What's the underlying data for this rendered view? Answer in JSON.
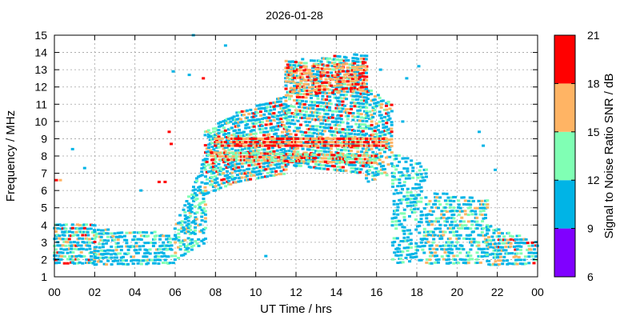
{
  "chart_data": {
    "type": "heatmap",
    "title": "2026-01-28",
    "xlabel": "UT Time / hrs",
    "ylabel": "Frequency / MHz",
    "colorbar_label": "Signal to Noise Ratio SNR / dB",
    "xlim": [
      0,
      24
    ],
    "ylim": [
      1,
      15
    ],
    "grid": true,
    "x_ticks": [
      "00",
      "02",
      "04",
      "06",
      "08",
      "10",
      "12",
      "14",
      "16",
      "18",
      "20",
      "22",
      "00"
    ],
    "y_ticks": [
      "1",
      "2",
      "3",
      "4",
      "5",
      "6",
      "7",
      "8",
      "9",
      "10",
      "11",
      "12",
      "13",
      "14",
      "15"
    ],
    "colorbar": {
      "ticks": [
        "6",
        "9",
        "12",
        "15",
        "18",
        "21"
      ],
      "bins": [
        {
          "min": 6,
          "max": 9,
          "color": "#8000ff"
        },
        {
          "min": 9,
          "max": 12,
          "color": "#00b4e6"
        },
        {
          "min": 12,
          "max": 15,
          "color": "#80ffb4"
        },
        {
          "min": 15,
          "max": 18,
          "color": "#ffb464"
        },
        {
          "min": 18,
          "max": 21,
          "color": "#ff0000"
        }
      ]
    },
    "regions": [
      {
        "x": [
          0,
          2
        ],
        "f_low": [
          1.8,
          1.8
        ],
        "f_high": [
          4.0,
          4.2
        ],
        "density": 0.6,
        "snr": [
          9,
          20
        ]
      },
      {
        "x": [
          2,
          6
        ],
        "f_low": [
          1.7,
          1.8
        ],
        "f_high": [
          3.8,
          3.5
        ],
        "density": 0.5,
        "snr": [
          9,
          17
        ]
      },
      {
        "x": [
          6,
          7.5
        ],
        "f_low": [
          2.0,
          3.0
        ],
        "f_high": [
          4.0,
          8.0
        ],
        "density": 0.45,
        "snr": [
          9,
          16
        ]
      },
      {
        "x": [
          7.5,
          9
        ],
        "f_low": [
          5.8,
          6.5
        ],
        "f_high": [
          9.5,
          10.5
        ],
        "density": 0.6,
        "snr": [
          9,
          21
        ]
      },
      {
        "x": [
          9,
          11.5
        ],
        "f_low": [
          6.5,
          7.0
        ],
        "f_high": [
          10.5,
          11.5
        ],
        "density": 0.65,
        "snr": [
          9,
          21
        ]
      },
      {
        "x": [
          11.5,
          15.5
        ],
        "f_low": [
          7.5,
          7.0
        ],
        "f_high": [
          13.5,
          14.0
        ],
        "density": 0.6,
        "snr": [
          9,
          21
        ]
      },
      {
        "x": [
          11.5,
          15.5
        ],
        "f_low": [
          11.5,
          11.8
        ],
        "f_high": [
          13.2,
          13.5
        ],
        "density": 0.5,
        "snr": [
          15,
          21
        ]
      },
      {
        "x": [
          15.5,
          16.8
        ],
        "f_low": [
          6.5,
          7.0
        ],
        "f_high": [
          12.0,
          11.0
        ],
        "density": 0.5,
        "snr": [
          9,
          20
        ]
      },
      {
        "x": [
          16.8,
          18.5
        ],
        "f_low": [
          1.8,
          2.0
        ],
        "f_high": [
          8.2,
          7.5
        ],
        "density": 0.35,
        "snr": [
          9,
          15
        ]
      },
      {
        "x": [
          18.5,
          21.5
        ],
        "f_low": [
          1.8,
          1.8
        ],
        "f_high": [
          6.0,
          5.5
        ],
        "density": 0.45,
        "snr": [
          9,
          17
        ]
      },
      {
        "x": [
          21.5,
          24
        ],
        "f_low": [
          1.7,
          1.8
        ],
        "f_high": [
          4.0,
          3.0
        ],
        "density": 0.55,
        "snr": [
          9,
          20
        ]
      }
    ],
    "traces": [
      {
        "x": [
          8,
          16.5
        ],
        "f": [
          8.8,
          8.8
        ],
        "snr": [
          15,
          21
        ]
      },
      {
        "x": [
          7.8,
          16
        ],
        "f": [
          8.0,
          7.8
        ],
        "snr": [
          12,
          20
        ]
      }
    ],
    "isolated_points": [
      {
        "x": 0.1,
        "f": 6.6,
        "snr": 18
      },
      {
        "x": 0.3,
        "f": 6.6,
        "snr": 17
      },
      {
        "x": 0.9,
        "f": 8.4,
        "snr": 10
      },
      {
        "x": 1.5,
        "f": 7.3,
        "snr": 10
      },
      {
        "x": 4.3,
        "f": 6.0,
        "snr": 10
      },
      {
        "x": 5.2,
        "f": 6.5,
        "snr": 19
      },
      {
        "x": 5.5,
        "f": 6.5,
        "snr": 20
      },
      {
        "x": 5.7,
        "f": 9.4,
        "snr": 20
      },
      {
        "x": 5.8,
        "f": 8.7,
        "snr": 19
      },
      {
        "x": 5.9,
        "f": 12.9,
        "snr": 10
      },
      {
        "x": 6.7,
        "f": 12.7,
        "snr": 10
      },
      {
        "x": 6.9,
        "f": 15.0,
        "snr": 10
      },
      {
        "x": 7.4,
        "f": 12.5,
        "snr": 19
      },
      {
        "x": 8.5,
        "f": 14.4,
        "snr": 10
      },
      {
        "x": 10.5,
        "f": 2.2,
        "snr": 10
      },
      {
        "x": 16.2,
        "f": 13.0,
        "snr": 10
      },
      {
        "x": 17.3,
        "f": 10.0,
        "snr": 10
      },
      {
        "x": 17.5,
        "f": 12.5,
        "snr": 10
      },
      {
        "x": 18.1,
        "f": 13.2,
        "snr": 10
      },
      {
        "x": 21.1,
        "f": 9.4,
        "snr": 10
      },
      {
        "x": 21.3,
        "f": 8.6,
        "snr": 10
      },
      {
        "x": 21.9,
        "f": 7.2,
        "snr": 10
      }
    ]
  }
}
